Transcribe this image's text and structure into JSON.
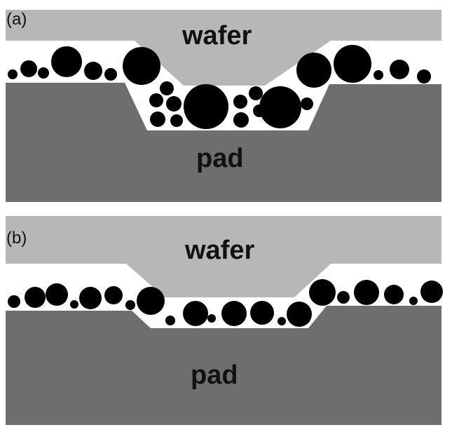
{
  "panels": [
    {
      "label": "(a)",
      "wafer_label": "wafer",
      "pad_label": "pad"
    },
    {
      "label": "(b)",
      "wafer_label": "wafer",
      "pad_label": "pad"
    }
  ],
  "colors": {
    "wafer": "#b7b7b7",
    "pad": "#6e6e6e",
    "gap": "#ffffff",
    "particle": "#000000"
  }
}
